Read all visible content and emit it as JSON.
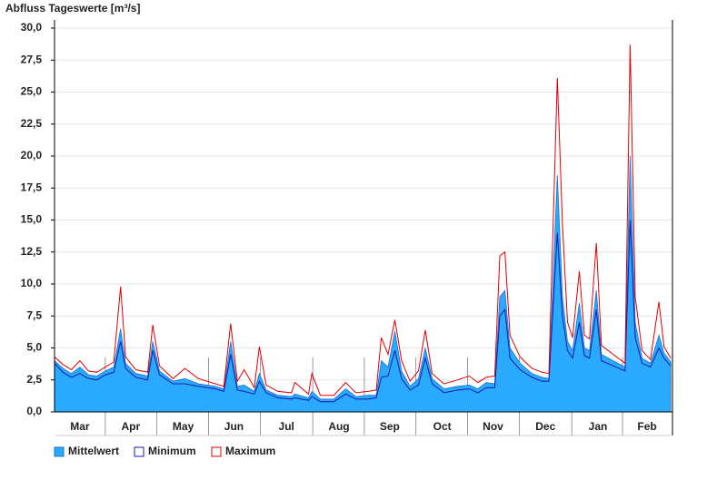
{
  "chart_data": {
    "type": "area_lines",
    "title": "Abfluss Tageswerte [m³/s]",
    "x": [
      0,
      5,
      10,
      15,
      20,
      25,
      30,
      35,
      39,
      42,
      48,
      55,
      58,
      62,
      70,
      77,
      85,
      95,
      100,
      104,
      108,
      112,
      118,
      121,
      125,
      132,
      140,
      142,
      150,
      152,
      157,
      165,
      172,
      178,
      185,
      190,
      193,
      197,
      201,
      205,
      210,
      215,
      219,
      223,
      230,
      238,
      245,
      250,
      255,
      260,
      263,
      266,
      269,
      275,
      282,
      288,
      292,
      297,
      300,
      303,
      306,
      310,
      313,
      316,
      320,
      323,
      330,
      337,
      340,
      343,
      347,
      352,
      357,
      360,
      364
    ],
    "xlim": [
      0,
      365
    ],
    "xticks": [
      {
        "value": 15,
        "label": "Mar"
      },
      {
        "value": 45,
        "label": "Apr"
      },
      {
        "value": 76,
        "label": "May"
      },
      {
        "value": 106,
        "label": "Jun"
      },
      {
        "value": 137,
        "label": "Jul"
      },
      {
        "value": 168,
        "label": "Aug"
      },
      {
        "value": 198,
        "label": "Sep"
      },
      {
        "value": 229,
        "label": "Oct"
      },
      {
        "value": 259,
        "label": "Nov"
      },
      {
        "value": 290,
        "label": "Dec"
      },
      {
        "value": 321,
        "label": "Jan"
      },
      {
        "value": 350,
        "label": "Feb"
      }
    ],
    "ylim": [
      0,
      30
    ],
    "yticks": [
      {
        "value": 0,
        "label": "0,0"
      },
      {
        "value": 2.5,
        "label": "2,5"
      },
      {
        "value": 5,
        "label": "5,0"
      },
      {
        "value": 7.5,
        "label": "7,5"
      },
      {
        "value": 10,
        "label": "10,0"
      },
      {
        "value": 12.5,
        "label": "12,5"
      },
      {
        "value": 15,
        "label": "15,0"
      },
      {
        "value": 17.5,
        "label": "17,5"
      },
      {
        "value": 20,
        "label": "20,0"
      },
      {
        "value": 22.5,
        "label": "22,5"
      },
      {
        "value": 25,
        "label": "25,0"
      },
      {
        "value": 27.5,
        "label": "27,5"
      },
      {
        "value": 30,
        "label": "30,0"
      }
    ],
    "grid": true,
    "series": [
      {
        "name": "Mittelwert",
        "color": "#29aaff",
        "values": [
          4.0,
          3.4,
          3.0,
          3.5,
          2.9,
          2.8,
          3.2,
          3.5,
          6.5,
          3.8,
          3.0,
          2.8,
          5.5,
          3.2,
          2.4,
          2.6,
          2.2,
          2.0,
          1.8,
          5.5,
          2.0,
          2.1,
          1.6,
          3.0,
          1.7,
          1.3,
          1.2,
          1.4,
          1.1,
          1.6,
          1.0,
          1.0,
          1.8,
          1.2,
          1.3,
          1.3,
          4.0,
          3.5,
          6.3,
          3.2,
          2.0,
          2.6,
          5.0,
          2.6,
          1.8,
          2.0,
          2.1,
          1.8,
          2.3,
          2.2,
          9.0,
          9.5,
          5.0,
          3.8,
          3.0,
          2.7,
          2.6,
          18.5,
          9.0,
          5.5,
          4.8,
          8.5,
          5.0,
          4.8,
          9.5,
          4.5,
          4.0,
          3.5,
          20.0,
          7.0,
          4.2,
          3.8,
          6.0,
          4.6,
          3.9
        ]
      },
      {
        "name": "Minimum",
        "color": "#1a1aa6",
        "values": [
          3.8,
          3.1,
          2.7,
          3.0,
          2.6,
          2.5,
          2.9,
          3.1,
          5.5,
          3.4,
          2.7,
          2.5,
          4.8,
          2.9,
          2.2,
          2.2,
          2.0,
          1.8,
          1.6,
          4.5,
          1.7,
          1.6,
          1.4,
          2.4,
          1.5,
          1.1,
          1.0,
          1.1,
          0.9,
          1.2,
          0.8,
          0.8,
          1.4,
          1.0,
          1.0,
          1.1,
          2.7,
          2.8,
          4.8,
          2.6,
          1.7,
          2.1,
          4.2,
          2.2,
          1.5,
          1.7,
          1.8,
          1.5,
          1.9,
          1.9,
          7.5,
          8.0,
          4.2,
          3.3,
          2.7,
          2.4,
          2.4,
          14.0,
          7.5,
          4.8,
          4.2,
          7.0,
          4.4,
          4.2,
          8.0,
          4.0,
          3.6,
          3.2,
          15.0,
          5.8,
          3.8,
          3.5,
          5.0,
          4.2,
          3.6
        ]
      },
      {
        "name": "Maximum",
        "color": "#e00000",
        "values": [
          4.3,
          3.7,
          3.3,
          4.0,
          3.2,
          3.1,
          3.5,
          3.9,
          9.8,
          4.3,
          3.3,
          3.1,
          6.8,
          3.6,
          2.6,
          3.4,
          2.6,
          2.2,
          2.0,
          6.9,
          2.4,
          3.3,
          1.9,
          5.1,
          2.1,
          1.6,
          1.5,
          2.3,
          1.4,
          3.0,
          1.3,
          1.3,
          2.3,
          1.5,
          1.6,
          1.7,
          5.8,
          4.5,
          7.2,
          4.0,
          2.4,
          3.2,
          6.4,
          3.0,
          2.2,
          2.5,
          2.8,
          2.3,
          2.7,
          2.8,
          12.2,
          12.5,
          6.0,
          4.3,
          3.4,
          3.1,
          3.0,
          26.1,
          14.7,
          7.0,
          5.8,
          11.0,
          6.0,
          5.7,
          13.2,
          5.2,
          4.5,
          3.8,
          28.7,
          9.0,
          4.8,
          4.1,
          8.6,
          5.1,
          4.2
        ]
      }
    ]
  }
}
